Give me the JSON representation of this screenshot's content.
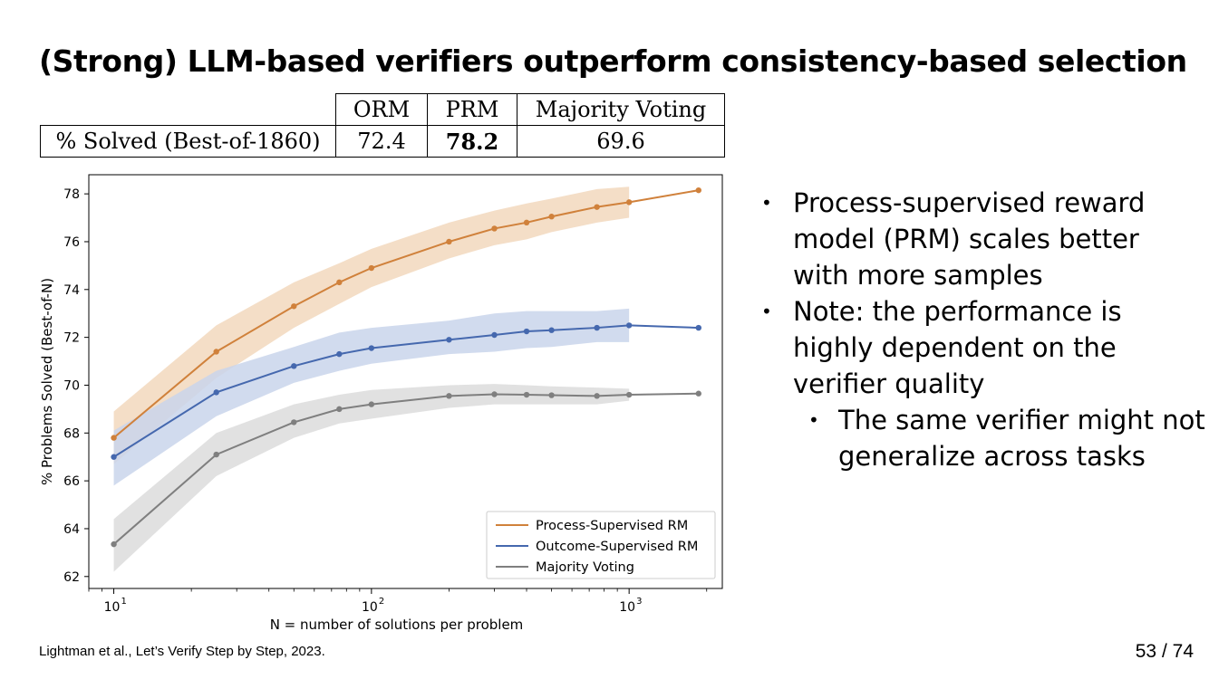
{
  "slide": {
    "title": "(Strong) LLM-based verifiers outperform consistency-based selection",
    "footnote": "Lightman et al., Let’s Verify Step by Step, 2023.",
    "page_current": "53",
    "page_sep": "/",
    "page_total": "74"
  },
  "table": {
    "header": [
      "",
      "ORM",
      "PRM",
      "Majority Voting"
    ],
    "row_label": "% Solved (Best-of-1860)",
    "values": [
      "72.4",
      "78.2",
      "69.6"
    ]
  },
  "bullets": [
    {
      "level": 1,
      "text": "Process-supervised reward model (PRM) scales better with more samples"
    },
    {
      "level": 1,
      "text": "Note: the performance is highly dependent on the verifier quality"
    },
    {
      "level": 2,
      "text": "The same verifier might not generalize across tasks"
    }
  ],
  "chart_data": {
    "type": "line",
    "xlabel": "N = number of solutions per problem",
    "ylabel": "% Problems Solved (Best-of-N)",
    "xscale": "log",
    "xlim": [
      8,
      2300
    ],
    "ylim": [
      61.5,
      78.8
    ],
    "xticks": [
      10,
      100,
      1000
    ],
    "xtick_labels": [
      "10",
      "10",
      "10"
    ],
    "xtick_exponents": [
      "1",
      "2",
      "3"
    ],
    "yticks": [
      62,
      64,
      66,
      68,
      70,
      72,
      74,
      76,
      78
    ],
    "grid": false,
    "legend_position": "bottom-right",
    "series": [
      {
        "name": "Process-Supervised RM",
        "color": "#d0813b",
        "band_color": "#f2d8bd",
        "x": [
          10,
          25,
          50,
          75,
          100,
          200,
          300,
          400,
          500,
          750,
          1000,
          1860
        ],
        "y": [
          67.8,
          71.4,
          73.3,
          74.3,
          74.9,
          76.0,
          76.55,
          76.8,
          77.05,
          77.45,
          77.65,
          78.15
        ],
        "y_low": [
          66.7,
          70.3,
          72.4,
          73.4,
          74.1,
          75.3,
          75.85,
          76.1,
          76.4,
          76.8,
          77.0,
          null
        ],
        "y_high": [
          68.9,
          72.5,
          74.3,
          75.1,
          75.7,
          76.8,
          77.3,
          77.6,
          77.8,
          78.2,
          78.3,
          null
        ]
      },
      {
        "name": "Outcome-Supervised RM",
        "color": "#4568ae",
        "band_color": "#c9d5eb",
        "x": [
          10,
          25,
          50,
          75,
          100,
          200,
          300,
          400,
          500,
          750,
          1000,
          1860
        ],
        "y": [
          67.0,
          69.7,
          70.8,
          71.3,
          71.55,
          71.9,
          72.1,
          72.25,
          72.3,
          72.4,
          72.5,
          72.4
        ],
        "y_low": [
          65.8,
          68.7,
          70.1,
          70.6,
          70.9,
          71.3,
          71.4,
          71.55,
          71.6,
          71.8,
          71.8,
          null
        ],
        "y_high": [
          68.1,
          70.6,
          71.6,
          72.2,
          72.4,
          72.7,
          73.0,
          73.1,
          73.1,
          73.1,
          73.2,
          null
        ]
      },
      {
        "name": "Majority Voting",
        "color": "#7f7f7f",
        "band_color": "#dcdcdc",
        "x": [
          10,
          25,
          50,
          75,
          100,
          200,
          300,
          400,
          500,
          750,
          1000,
          1860
        ],
        "y": [
          63.35,
          67.1,
          68.45,
          69.0,
          69.2,
          69.55,
          69.62,
          69.6,
          69.58,
          69.55,
          69.6,
          69.65
        ],
        "y_low": [
          62.2,
          66.2,
          67.8,
          68.4,
          68.6,
          69.05,
          69.2,
          69.2,
          69.2,
          69.2,
          69.35,
          null
        ],
        "y_high": [
          64.4,
          68.0,
          69.2,
          69.6,
          69.8,
          70.0,
          70.05,
          70.0,
          69.95,
          69.9,
          69.85,
          null
        ]
      }
    ]
  }
}
